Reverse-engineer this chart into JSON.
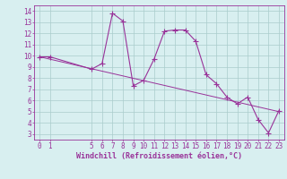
{
  "x_values": [
    0,
    1,
    5,
    6,
    7,
    8,
    9,
    10,
    11,
    12,
    13,
    14,
    15,
    16,
    17,
    18,
    19,
    20,
    21,
    22,
    23
  ],
  "y_values": [
    9.9,
    9.9,
    8.8,
    9.3,
    13.8,
    13.1,
    7.3,
    7.8,
    9.7,
    12.2,
    12.3,
    12.3,
    11.3,
    8.3,
    7.5,
    6.3,
    5.7,
    6.3,
    4.3,
    3.1,
    5.1
  ],
  "trend_x": [
    0,
    23
  ],
  "trend_y": [
    9.9,
    5.0
  ],
  "line_color": "#993399",
  "marker": "+",
  "markersize": 4,
  "linewidth": 0.8,
  "background_color": "#d8eff0",
  "grid_color": "#aacccc",
  "xlabel": "Windchill (Refroidissement éolien,°C)",
  "xlabel_fontsize": 6,
  "yticks": [
    3,
    4,
    5,
    6,
    7,
    8,
    9,
    10,
    11,
    12,
    13,
    14
  ],
  "xticks": [
    0,
    1,
    5,
    6,
    7,
    8,
    9,
    10,
    11,
    12,
    13,
    14,
    15,
    16,
    17,
    18,
    19,
    20,
    21,
    22,
    23
  ],
  "ylim": [
    2.5,
    14.5
  ],
  "xlim": [
    -0.5,
    23.5
  ],
  "tick_fontsize": 5.5,
  "tick_color": "#993399",
  "spine_color": "#993399"
}
